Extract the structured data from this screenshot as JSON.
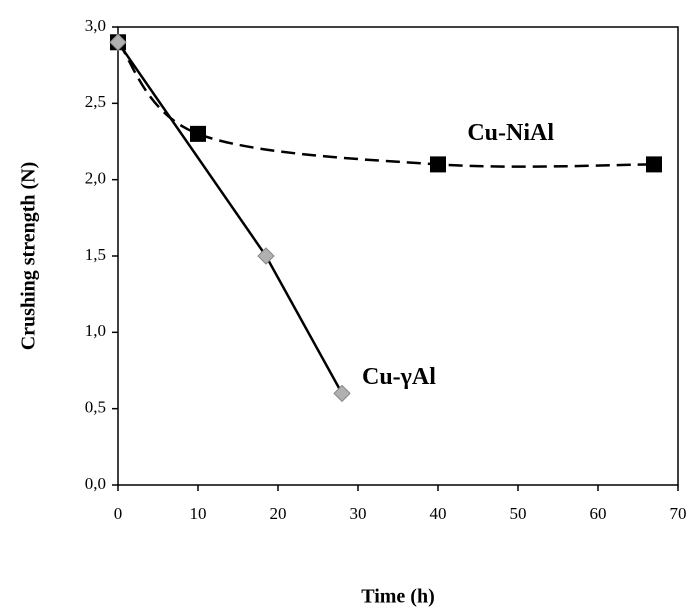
{
  "chart_data": {
    "type": "line",
    "x_label": "Time (h)",
    "y_label": "Crushing strength (N)",
    "xlim": [
      0,
      70
    ],
    "xticks": [
      0,
      10,
      20,
      30,
      40,
      50,
      60,
      70
    ],
    "ylim": [
      0,
      3
    ],
    "yticks": [
      {
        "value": 0,
        "label": "0,0"
      },
      {
        "value": 0.5,
        "label": "0,5"
      },
      {
        "value": 1,
        "label": "1,0"
      },
      {
        "value": 1.5,
        "label": "1,5"
      },
      {
        "value": 2,
        "label": "2,0"
      },
      {
        "value": 2.5,
        "label": "2,5"
      },
      {
        "value": 3,
        "label": "3,0"
      }
    ],
    "series": [
      {
        "name": "Cu-NiAl",
        "color": "#000000",
        "marker": "square",
        "dashed": true,
        "x": [
          0,
          10,
          40,
          67
        ],
        "values": [
          2.9,
          2.3,
          2.1,
          2.1
        ]
      },
      {
        "name": "Cu-γAl",
        "color": "#000000",
        "marker_color": "#b0b0b0",
        "marker": "diamond",
        "dashed": false,
        "x": [
          0,
          18.5,
          28
        ],
        "values": [
          2.9,
          1.5,
          0.6
        ]
      }
    ]
  }
}
